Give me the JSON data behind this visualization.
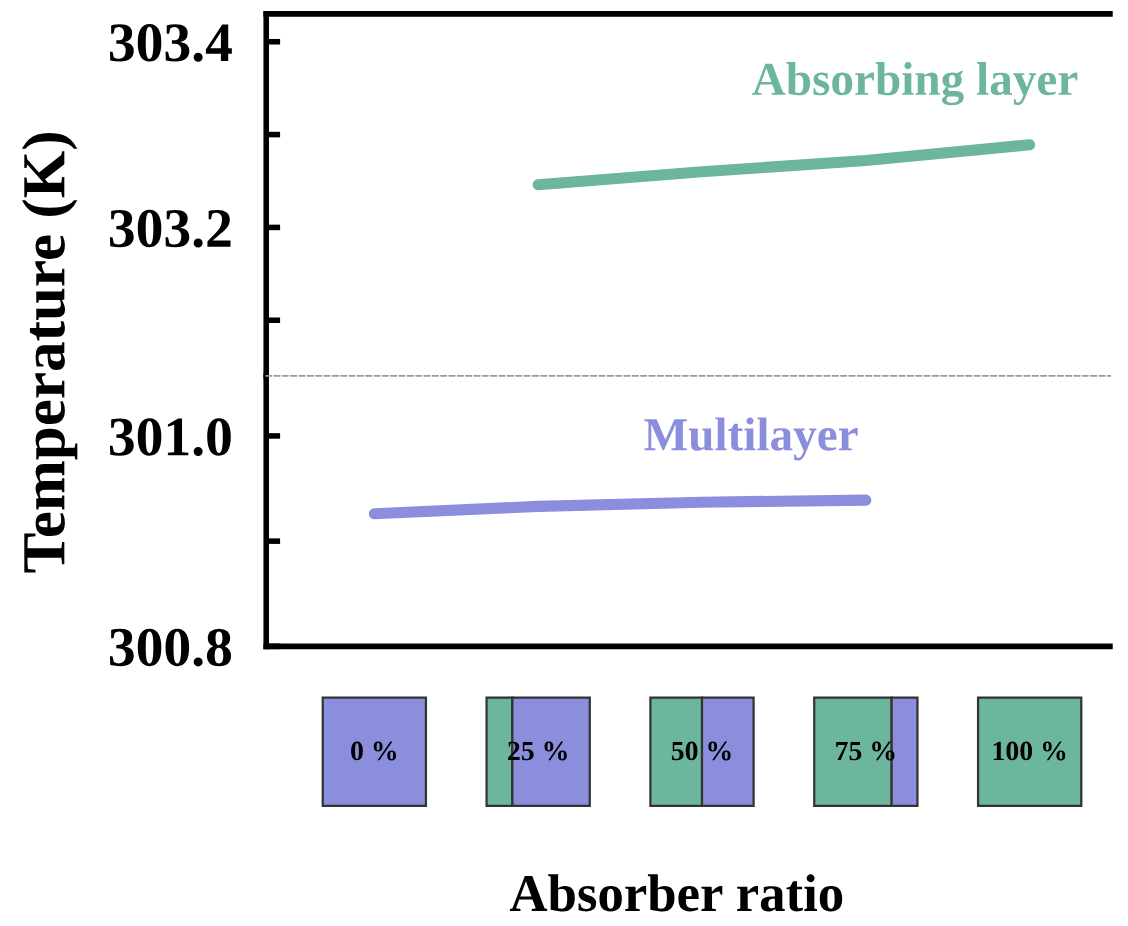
{
  "chart_data": [
    {
      "type": "line",
      "ylabel": "Temperature (K)",
      "ylim": [
        303.04,
        303.43
      ],
      "yticks": [
        303.2,
        303.4
      ],
      "tick_labels": "y",
      "grid": false,
      "marker": "none",
      "line_style": "solid",
      "series": [
        {
          "name": "Absorbing layer",
          "color": "#6db69e",
          "values": [
            null,
            303.246,
            303.26,
            303.272,
            303.289
          ]
        }
      ]
    },
    {
      "type": "line",
      "xlabel": "Absorber ratio",
      "categories": [
        "0 %",
        "25 %",
        "50 %",
        "75 %",
        "100 %"
      ],
      "ylim": [
        300.8,
        301.057
      ],
      "yticks": [
        300.8,
        {
          "value": 301.0,
          "label": "301.0"
        }
      ],
      "grid": false,
      "marker": "none",
      "line_style": "solid",
      "series": [
        {
          "name": "Multilayer",
          "color": "#8a8edc",
          "values": [
            300.926,
            300.933,
            300.937,
            300.939,
            null
          ]
        }
      ]
    }
  ]
}
